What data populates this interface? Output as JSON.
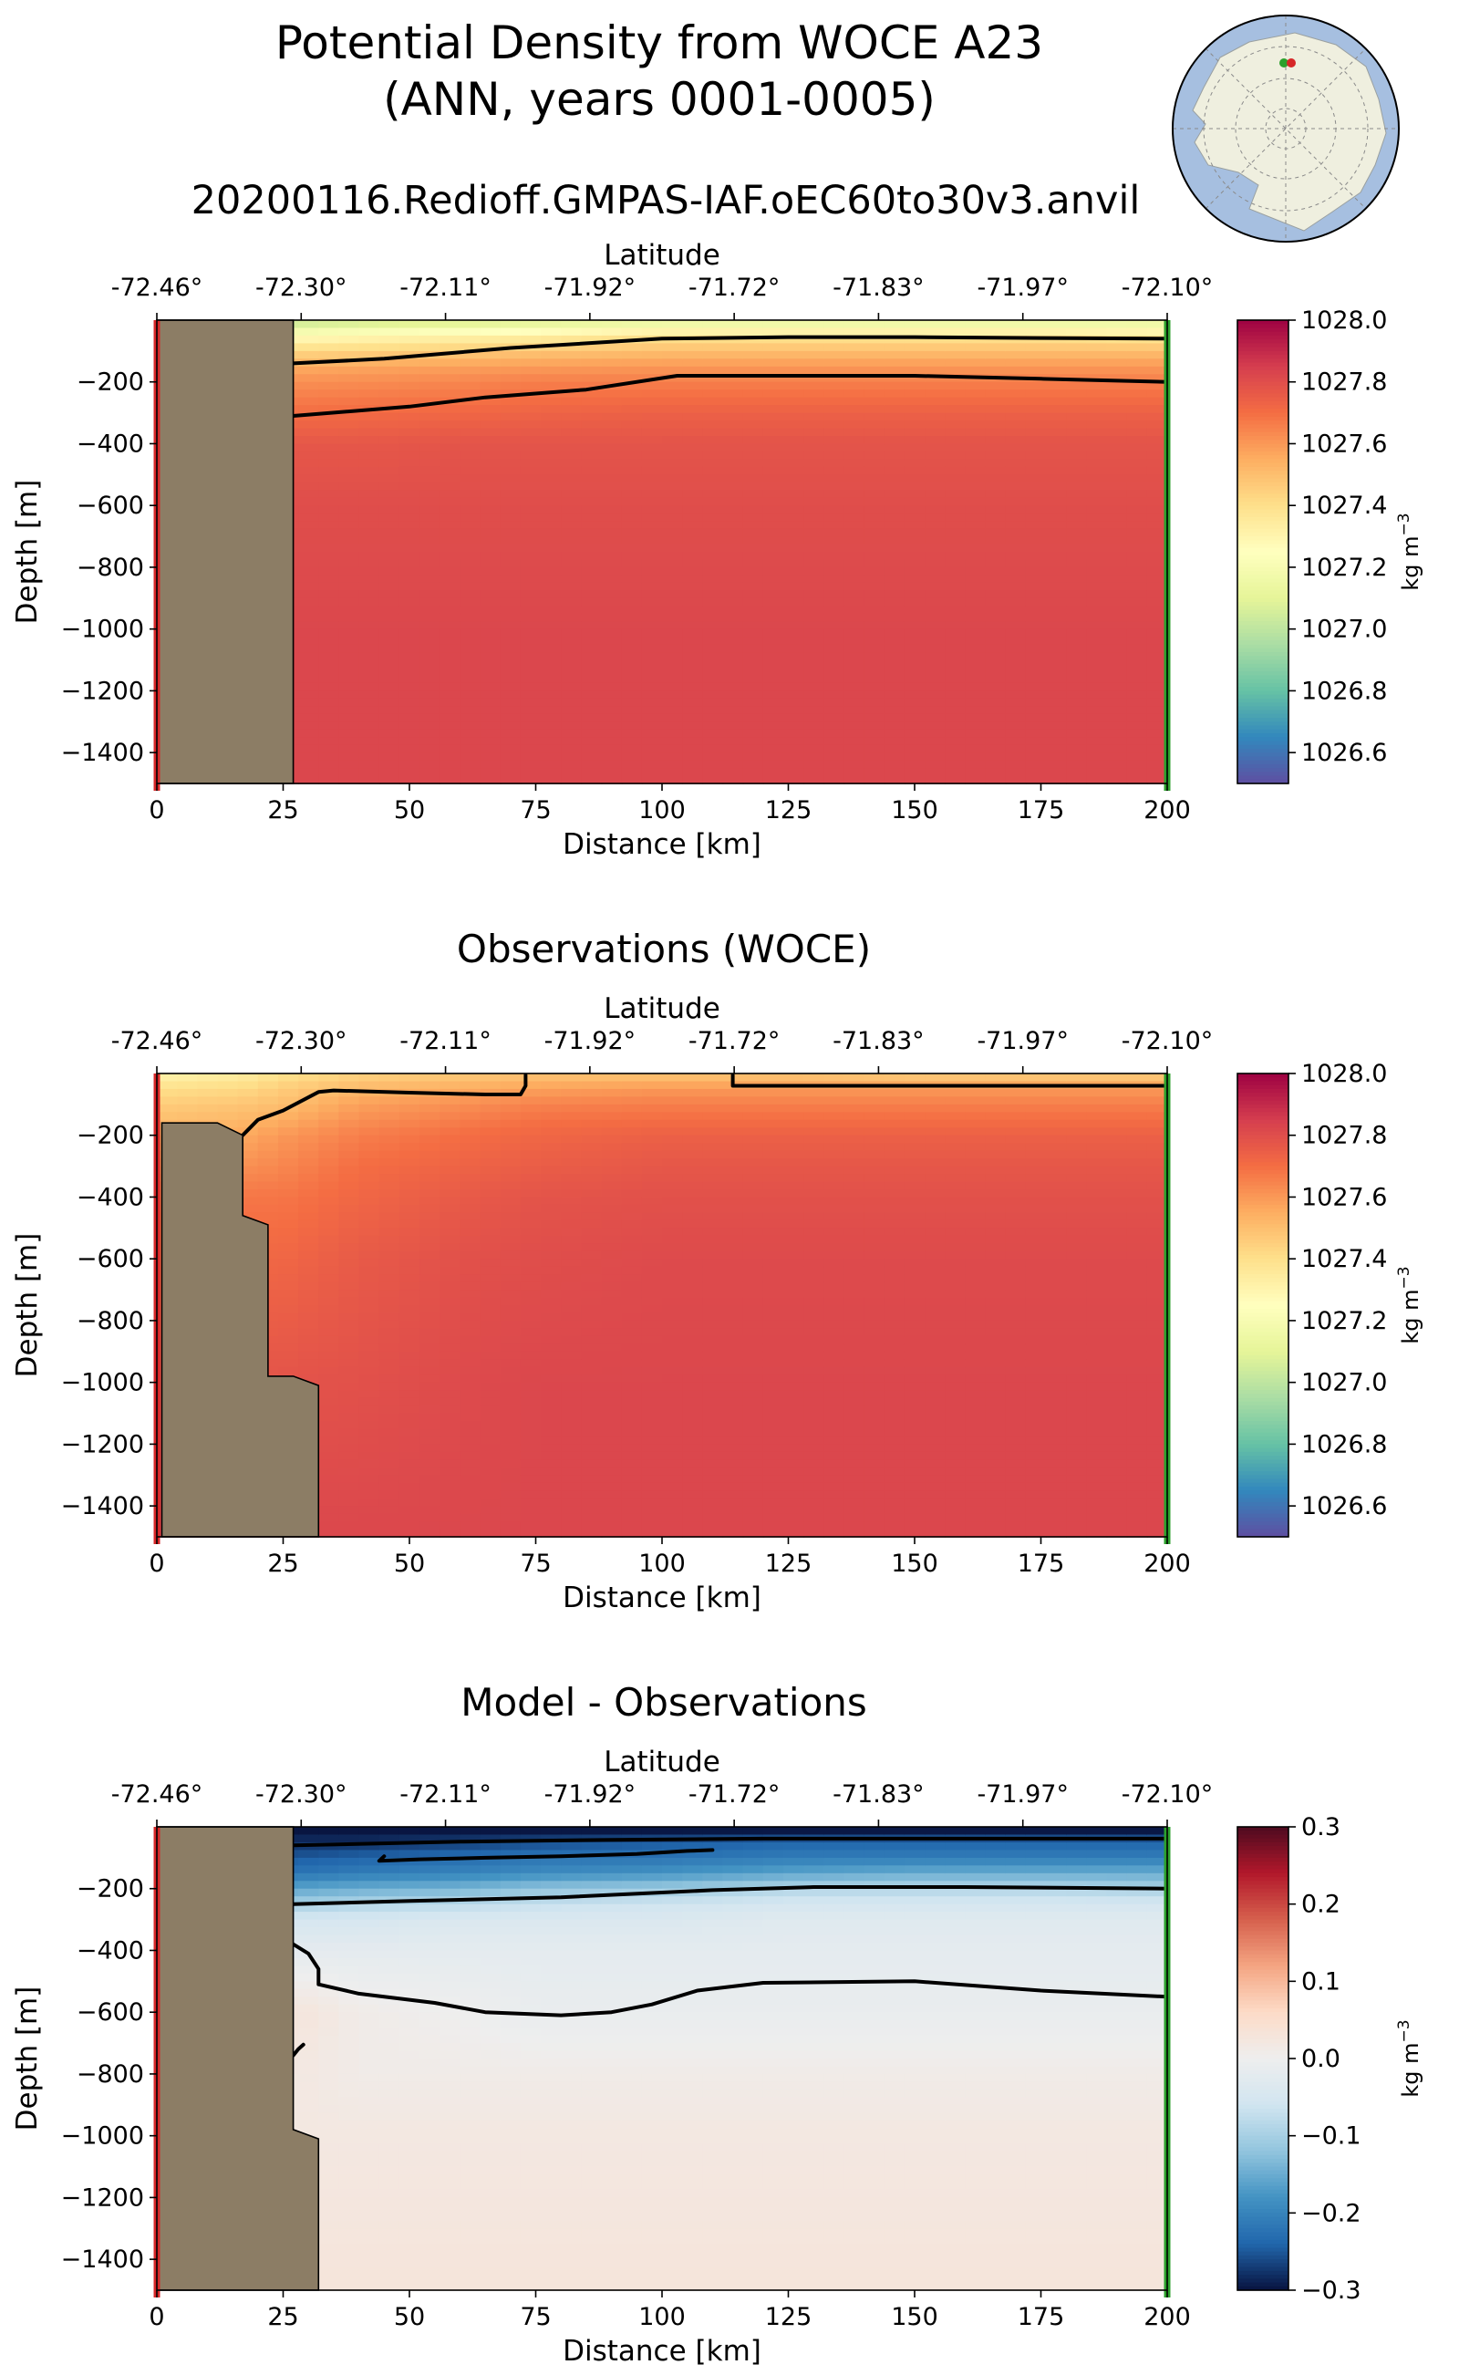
{
  "figure": {
    "title_line1": "Potential Density from WOCE A23",
    "title_line2": "(ANN, years 0001-0005)",
    "subtitle": "20200116.Redioff.GMPAS-IAF.oEC60to30v3.anvil"
  },
  "inset_map": {
    "type": "polar-map",
    "region": "Antarctica",
    "start_marker_color": "#d62728",
    "end_marker_color": "#2ca02c"
  },
  "colors": {
    "land": "#8c7d65",
    "start_line": "#d62728",
    "end_line": "#2ca02c",
    "contour": "#000000"
  },
  "chart_data": [
    {
      "type": "heatmap",
      "title": "",
      "xlabel": "Distance [km]",
      "ylabel": "Depth [m]",
      "top_axis_label": "Latitude",
      "top_tick_labels": [
        "-72.46°",
        "-72.30°",
        "-72.11°",
        "-71.92°",
        "-71.72°",
        "-71.83°",
        "-71.97°",
        "-72.10°"
      ],
      "x_ticks": [
        0,
        25,
        50,
        75,
        100,
        125,
        150,
        175,
        200
      ],
      "y_ticks": [
        -200,
        -400,
        -600,
        -800,
        -1000,
        -1200,
        -1400
      ],
      "xlim": [
        0,
        200
      ],
      "ylim": [
        -1500,
        0
      ],
      "colorbar": {
        "colormap": "Spectral_r",
        "range": [
          1026.5,
          1028.0
        ],
        "ticks": [
          1028.0,
          1027.8,
          1027.6,
          1027.4,
          1027.2,
          1027.0,
          1026.8,
          1026.6
        ],
        "label": "kg m^-3"
      },
      "distance_km": [
        27,
        45,
        60,
        75,
        100,
        125,
        150,
        175,
        200
      ],
      "depth_m": [
        -10,
        -50,
        -100,
        -150,
        -200,
        -300,
        -400,
        -600,
        -1000,
        -1500
      ],
      "values": [
        [
          1027.05,
          1027.08,
          1027.1,
          1027.12,
          1027.15,
          1027.15,
          1027.15,
          1027.15,
          1027.15
        ],
        [
          1027.25,
          1027.28,
          1027.3,
          1027.32,
          1027.38,
          1027.38,
          1027.38,
          1027.38,
          1027.36
        ],
        [
          1027.42,
          1027.44,
          1027.46,
          1027.48,
          1027.5,
          1027.5,
          1027.5,
          1027.5,
          1027.5
        ],
        [
          1027.55,
          1027.57,
          1027.58,
          1027.59,
          1027.6,
          1027.6,
          1027.6,
          1027.6,
          1027.6
        ],
        [
          1027.62,
          1027.63,
          1027.64,
          1027.66,
          1027.66,
          1027.66,
          1027.66,
          1027.66,
          1027.66
        ],
        [
          1027.7,
          1027.71,
          1027.72,
          1027.73,
          1027.74,
          1027.74,
          1027.74,
          1027.74,
          1027.74
        ],
        [
          1027.77,
          1027.77,
          1027.78,
          1027.78,
          1027.78,
          1027.78,
          1027.78,
          1027.78,
          1027.78
        ],
        [
          1027.8,
          1027.8,
          1027.8,
          1027.8,
          1027.8,
          1027.8,
          1027.8,
          1027.8,
          1027.8
        ],
        [
          1027.82,
          1027.82,
          1027.82,
          1027.82,
          1027.82,
          1027.82,
          1027.82,
          1027.82,
          1027.82
        ],
        [
          1027.82,
          1027.82,
          1027.82,
          1027.82,
          1027.82,
          1027.82,
          1027.82,
          1027.82,
          1027.82
        ]
      ],
      "contours": [
        {
          "points": [
            [
              27,
              -140
            ],
            [
              45,
              -125
            ],
            [
              70,
              -90
            ],
            [
              100,
              -60
            ],
            [
              125,
              -55
            ],
            [
              150,
              -55
            ],
            [
              175,
              -58
            ],
            [
              200,
              -60
            ]
          ]
        },
        {
          "points": [
            [
              27,
              -310
            ],
            [
              50,
              -280
            ],
            [
              65,
              -250
            ],
            [
              85,
              -225
            ],
            [
              103,
              -180
            ],
            [
              125,
              -180
            ],
            [
              150,
              -180
            ],
            [
              175,
              -190
            ],
            [
              200,
              -200
            ]
          ]
        }
      ],
      "land": [
        [
          0,
          0
        ],
        [
          27,
          0
        ],
        [
          27,
          -1500
        ],
        [
          0,
          -1500
        ]
      ]
    },
    {
      "type": "heatmap",
      "title": "Observations (WOCE)",
      "xlabel": "Distance [km]",
      "ylabel": "Depth [m]",
      "top_axis_label": "Latitude",
      "top_tick_labels": [
        "-72.46°",
        "-72.30°",
        "-72.11°",
        "-71.92°",
        "-71.72°",
        "-71.83°",
        "-71.97°",
        "-72.10°"
      ],
      "x_ticks": [
        0,
        25,
        50,
        75,
        100,
        125,
        150,
        175,
        200
      ],
      "y_ticks": [
        -200,
        -400,
        -600,
        -800,
        -1000,
        -1200,
        -1400
      ],
      "xlim": [
        0,
        200
      ],
      "ylim": [
        -1500,
        0
      ],
      "colorbar": {
        "colormap": "Spectral_r",
        "range": [
          1026.5,
          1028.0
        ],
        "ticks": [
          1028.0,
          1027.8,
          1027.6,
          1027.4,
          1027.2,
          1027.0,
          1026.8,
          1026.6
        ],
        "label": "kg m^-3"
      },
      "distance_km": [
        1,
        17,
        25,
        40,
        60,
        75,
        100,
        125,
        150,
        175,
        200
      ],
      "depth_m": [
        -10,
        -50,
        -100,
        -150,
        -200,
        -300,
        -400,
        -600,
        -1000,
        -1500
      ],
      "values": [
        [
          1027.32,
          1027.35,
          1027.4,
          1027.45,
          1027.48,
          1027.5,
          1027.5,
          1027.5,
          1027.48,
          1027.48,
          1027.48
        ],
        [
          1027.4,
          1027.42,
          1027.46,
          1027.52,
          1027.55,
          1027.58,
          1027.6,
          1027.6,
          1027.6,
          1027.6,
          1027.6
        ],
        [
          1027.46,
          1027.48,
          1027.5,
          1027.58,
          1027.62,
          1027.65,
          1027.66,
          1027.66,
          1027.66,
          1027.66,
          1027.66
        ],
        [
          1027.5,
          1027.52,
          1027.55,
          1027.62,
          1027.66,
          1027.69,
          1027.7,
          1027.7,
          1027.7,
          1027.7,
          1027.7
        ],
        [
          1027.55,
          1027.56,
          1027.6,
          1027.66,
          1027.7,
          1027.72,
          1027.74,
          1027.74,
          1027.74,
          1027.74,
          1027.74
        ],
        [
          1027.62,
          1027.62,
          1027.64,
          1027.7,
          1027.73,
          1027.75,
          1027.77,
          1027.77,
          1027.77,
          1027.77,
          1027.77
        ],
        [
          1027.68,
          1027.68,
          1027.68,
          1027.72,
          1027.76,
          1027.78,
          1027.79,
          1027.79,
          1027.79,
          1027.79,
          1027.79
        ],
        [
          1027.72,
          1027.72,
          1027.72,
          1027.76,
          1027.79,
          1027.8,
          1027.81,
          1027.81,
          1027.81,
          1027.81,
          1027.81
        ],
        [
          1027.78,
          1027.78,
          1027.78,
          1027.79,
          1027.81,
          1027.82,
          1027.82,
          1027.82,
          1027.82,
          1027.82,
          1027.82
        ],
        [
          1027.82,
          1027.82,
          1027.82,
          1027.82,
          1027.82,
          1027.82,
          1027.82,
          1027.82,
          1027.82,
          1027.82,
          1027.82
        ]
      ],
      "contours": [
        {
          "points": [
            [
              17,
              -200
            ],
            [
              20,
              -150
            ],
            [
              25,
              -120
            ],
            [
              32,
              -60
            ],
            [
              35,
              -55
            ],
            [
              50,
              -62
            ],
            [
              65,
              -68
            ],
            [
              72,
              -68
            ],
            [
              73,
              -40
            ],
            [
              73,
              -5
            ]
          ]
        },
        {
          "points": [
            [
              114,
              -5
            ],
            [
              114,
              -40
            ],
            [
              125,
              -40
            ],
            [
              150,
              -40
            ],
            [
              175,
              -40
            ],
            [
              200,
              -40
            ]
          ]
        }
      ],
      "land": [
        [
          1,
          -160
        ],
        [
          12,
          -160
        ],
        [
          17,
          -200
        ],
        [
          17,
          -460
        ],
        [
          22,
          -490
        ],
        [
          22,
          -980
        ],
        [
          27,
          -980
        ],
        [
          32,
          -1010
        ],
        [
          32,
          -1500
        ],
        [
          1,
          -1500
        ]
      ]
    },
    {
      "type": "heatmap",
      "title": "Model - Observations",
      "xlabel": "Distance [km]",
      "ylabel": "Depth [m]",
      "top_axis_label": "Latitude",
      "top_tick_labels": [
        "-72.46°",
        "-72.30°",
        "-72.11°",
        "-71.92°",
        "-71.72°",
        "-71.83°",
        "-71.97°",
        "-72.10°"
      ],
      "x_ticks": [
        0,
        25,
        50,
        75,
        100,
        125,
        150,
        175,
        200
      ],
      "y_ticks": [
        -200,
        -400,
        -600,
        -800,
        -1000,
        -1200,
        -1400
      ],
      "xlim": [
        0,
        200
      ],
      "ylim": [
        -1500,
        0
      ],
      "colorbar": {
        "colormap": "RdBu_r",
        "range": [
          -0.3,
          0.3
        ],
        "ticks": [
          0.3,
          0.2,
          0.1,
          0.0,
          -0.1,
          -0.2,
          -0.3
        ],
        "tick_labels": [
          "0.3",
          "0.2",
          "0.1",
          "0.0",
          "−0.1",
          "−0.2",
          "−0.3"
        ],
        "label": "kg m^-3"
      },
      "distance_km": [
        27,
        40,
        60,
        75,
        100,
        125,
        150,
        175,
        200
      ],
      "depth_m": [
        -10,
        -50,
        -100,
        -150,
        -200,
        -250,
        -300,
        -400,
        -600,
        -800,
        -1000,
        -1500
      ],
      "values": [
        [
          -0.3,
          -0.3,
          -0.3,
          -0.3,
          -0.3,
          -0.3,
          -0.3,
          -0.3,
          -0.3
        ],
        [
          -0.28,
          -0.28,
          -0.27,
          -0.26,
          -0.25,
          -0.24,
          -0.24,
          -0.24,
          -0.24
        ],
        [
          -0.25,
          -0.24,
          -0.23,
          -0.22,
          -0.22,
          -0.21,
          -0.21,
          -0.21,
          -0.21
        ],
        [
          -0.22,
          -0.21,
          -0.2,
          -0.19,
          -0.18,
          -0.16,
          -0.15,
          -0.15,
          -0.15
        ],
        [
          -0.16,
          -0.15,
          -0.14,
          -0.12,
          -0.11,
          -0.09,
          -0.09,
          -0.09,
          -0.1
        ],
        [
          -0.1,
          -0.09,
          -0.08,
          -0.07,
          -0.06,
          -0.05,
          -0.05,
          -0.05,
          -0.05
        ],
        [
          -0.05,
          -0.05,
          -0.04,
          -0.04,
          -0.04,
          -0.03,
          -0.03,
          -0.03,
          -0.03
        ],
        [
          -0.02,
          -0.02,
          -0.02,
          -0.02,
          -0.02,
          -0.02,
          -0.02,
          -0.02,
          -0.02
        ],
        [
          0.03,
          0.01,
          0.0,
          -0.01,
          -0.01,
          -0.01,
          -0.01,
          -0.01,
          -0.01
        ],
        [
          0.02,
          0.01,
          0.01,
          0.01,
          0.01,
          0.01,
          0.01,
          0.01,
          0.01
        ],
        [
          0.02,
          0.02,
          0.02,
          0.02,
          0.02,
          0.02,
          0.02,
          0.02,
          0.02
        ],
        [
          0.03,
          0.03,
          0.03,
          0.03,
          0.03,
          0.03,
          0.03,
          0.03,
          0.03
        ]
      ],
      "contours": [
        {
          "points": [
            [
              27,
              -60
            ],
            [
              60,
              -48
            ],
            [
              90,
              -42
            ],
            [
              120,
              -38
            ],
            [
              150,
              -38
            ],
            [
              200,
              -38
            ]
          ]
        },
        {
          "points": [
            [
              45,
              -95
            ],
            [
              44,
              -110
            ],
            [
              52,
              -105
            ],
            [
              65,
              -100
            ],
            [
              80,
              -95
            ],
            [
              95,
              -88
            ],
            [
              105,
              -78
            ],
            [
              110,
              -75
            ]
          ]
        },
        {
          "points": [
            [
              27,
              -250
            ],
            [
              50,
              -240
            ],
            [
              80,
              -228
            ],
            [
              110,
              -205
            ],
            [
              130,
              -195
            ],
            [
              160,
              -195
            ],
            [
              200,
              -200
            ]
          ]
        },
        {
          "points": [
            [
              27,
              -380
            ],
            [
              30,
              -410
            ],
            [
              32,
              -460
            ],
            [
              32,
              -510
            ],
            [
              40,
              -540
            ],
            [
              55,
              -570
            ],
            [
              65,
              -600
            ],
            [
              80,
              -610
            ],
            [
              90,
              -600
            ],
            [
              98,
              -575
            ],
            [
              107,
              -530
            ],
            [
              120,
              -505
            ],
            [
              150,
              -500
            ],
            [
              175,
              -530
            ],
            [
              200,
              -550
            ]
          ]
        },
        {
          "points": [
            [
              27,
              -740
            ],
            [
              28,
              -720
            ],
            [
              29,
              -705
            ]
          ]
        }
      ],
      "land": [
        [
          0,
          0
        ],
        [
          27,
          0
        ],
        [
          27,
          -980
        ],
        [
          32,
          -1010
        ],
        [
          32,
          -1500
        ],
        [
          0,
          -1500
        ]
      ]
    }
  ]
}
